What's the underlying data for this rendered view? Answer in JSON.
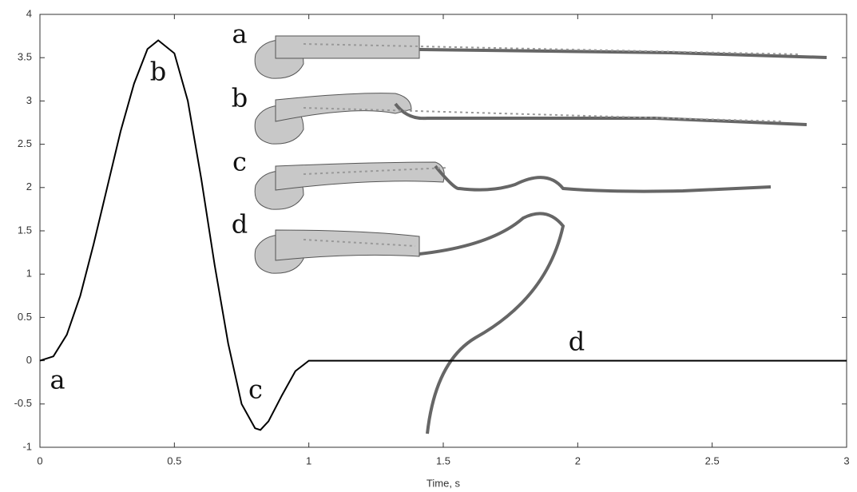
{
  "chart_data": {
    "type": "line",
    "xlabel": "Time, s",
    "x": [
      0,
      0.05,
      0.1,
      0.15,
      0.2,
      0.25,
      0.3,
      0.35,
      0.4,
      0.44,
      0.5,
      0.55,
      0.6,
      0.65,
      0.7,
      0.75,
      0.8,
      0.82,
      0.85,
      0.9,
      0.95,
      1.0,
      1.5,
      2,
      2.5,
      3
    ],
    "series": [
      {
        "color": "#000000",
        "values": [
          0,
          0.05,
          0.3,
          0.75,
          1.35,
          2.0,
          2.65,
          3.2,
          3.6,
          3.7,
          3.55,
          3.0,
          2.1,
          1.1,
          0.2,
          -0.5,
          -0.78,
          -0.8,
          -0.7,
          -0.4,
          -0.12,
          0,
          0,
          0,
          0,
          0
        ]
      }
    ],
    "xlim": [
      0,
      3
    ],
    "xticks": [
      0,
      0.5,
      1,
      1.5,
      2,
      2.5,
      3
    ],
    "ylim": [
      -1,
      4
    ],
    "yticks": [
      -1,
      -0.5,
      0,
      0.5,
      1,
      1.5,
      2,
      2.5,
      3,
      3.5,
      4
    ],
    "grid": false,
    "annotations": [
      "a",
      "b",
      "c",
      "d",
      "a",
      "b",
      "c",
      "d"
    ]
  }
}
